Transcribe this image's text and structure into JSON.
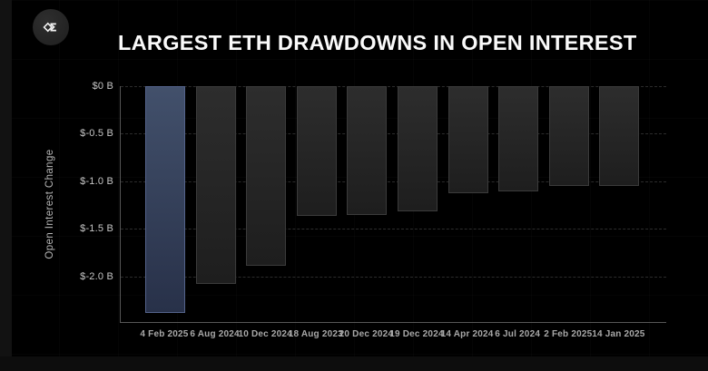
{
  "header": {
    "title": "LARGEST ETH DRAWDOWNS IN OPEN INTEREST",
    "logo_glyph": "sigma-diamond"
  },
  "chart_data": {
    "type": "bar",
    "title": "LARGEST ETH DRAWDOWNS IN OPEN INTEREST",
    "xlabel": "",
    "ylabel": "Open Interest Change",
    "unit": "$B",
    "categories": [
      "4 Feb 2025",
      "6 Aug 2024",
      "10 Dec 2024",
      "18 Aug 2023",
      "20 Dec 2024",
      "19 Dec 2024",
      "14 Apr 2024",
      "6 Jul 2024",
      "2 Feb 2025",
      "14 Jan 2025"
    ],
    "values": [
      -2.38,
      -2.08,
      -1.89,
      -1.36,
      -1.35,
      -1.32,
      -1.13,
      -1.11,
      -1.05,
      -1.05
    ],
    "highlight_index": 0,
    "ytick_labels": [
      "$0 B",
      "$-0.5 B",
      "$-1.0 B",
      "$-1.5 B",
      "$-2.0 B"
    ],
    "ytick_values": [
      0,
      -0.5,
      -1.0,
      -1.5,
      -2.0
    ],
    "ylim": [
      -2.48,
      0
    ],
    "grid": "horizontal-dashed",
    "legend": "none",
    "colors": {
      "background": "#000000",
      "highlight_bar_top": "#42506b",
      "highlight_bar_bottom": "#283149",
      "highlight_bar_border": "#54638b",
      "bar_top": "#2d2d2d",
      "bar_bottom": "#1e1e1e",
      "bar_border": "#3b3b3b",
      "axis": "#575757",
      "gridline": "#2c2c2c",
      "ytick_text": "#c6c6c6",
      "xtick_text": "#a8a8a8",
      "title_text": "#fafafa"
    }
  }
}
